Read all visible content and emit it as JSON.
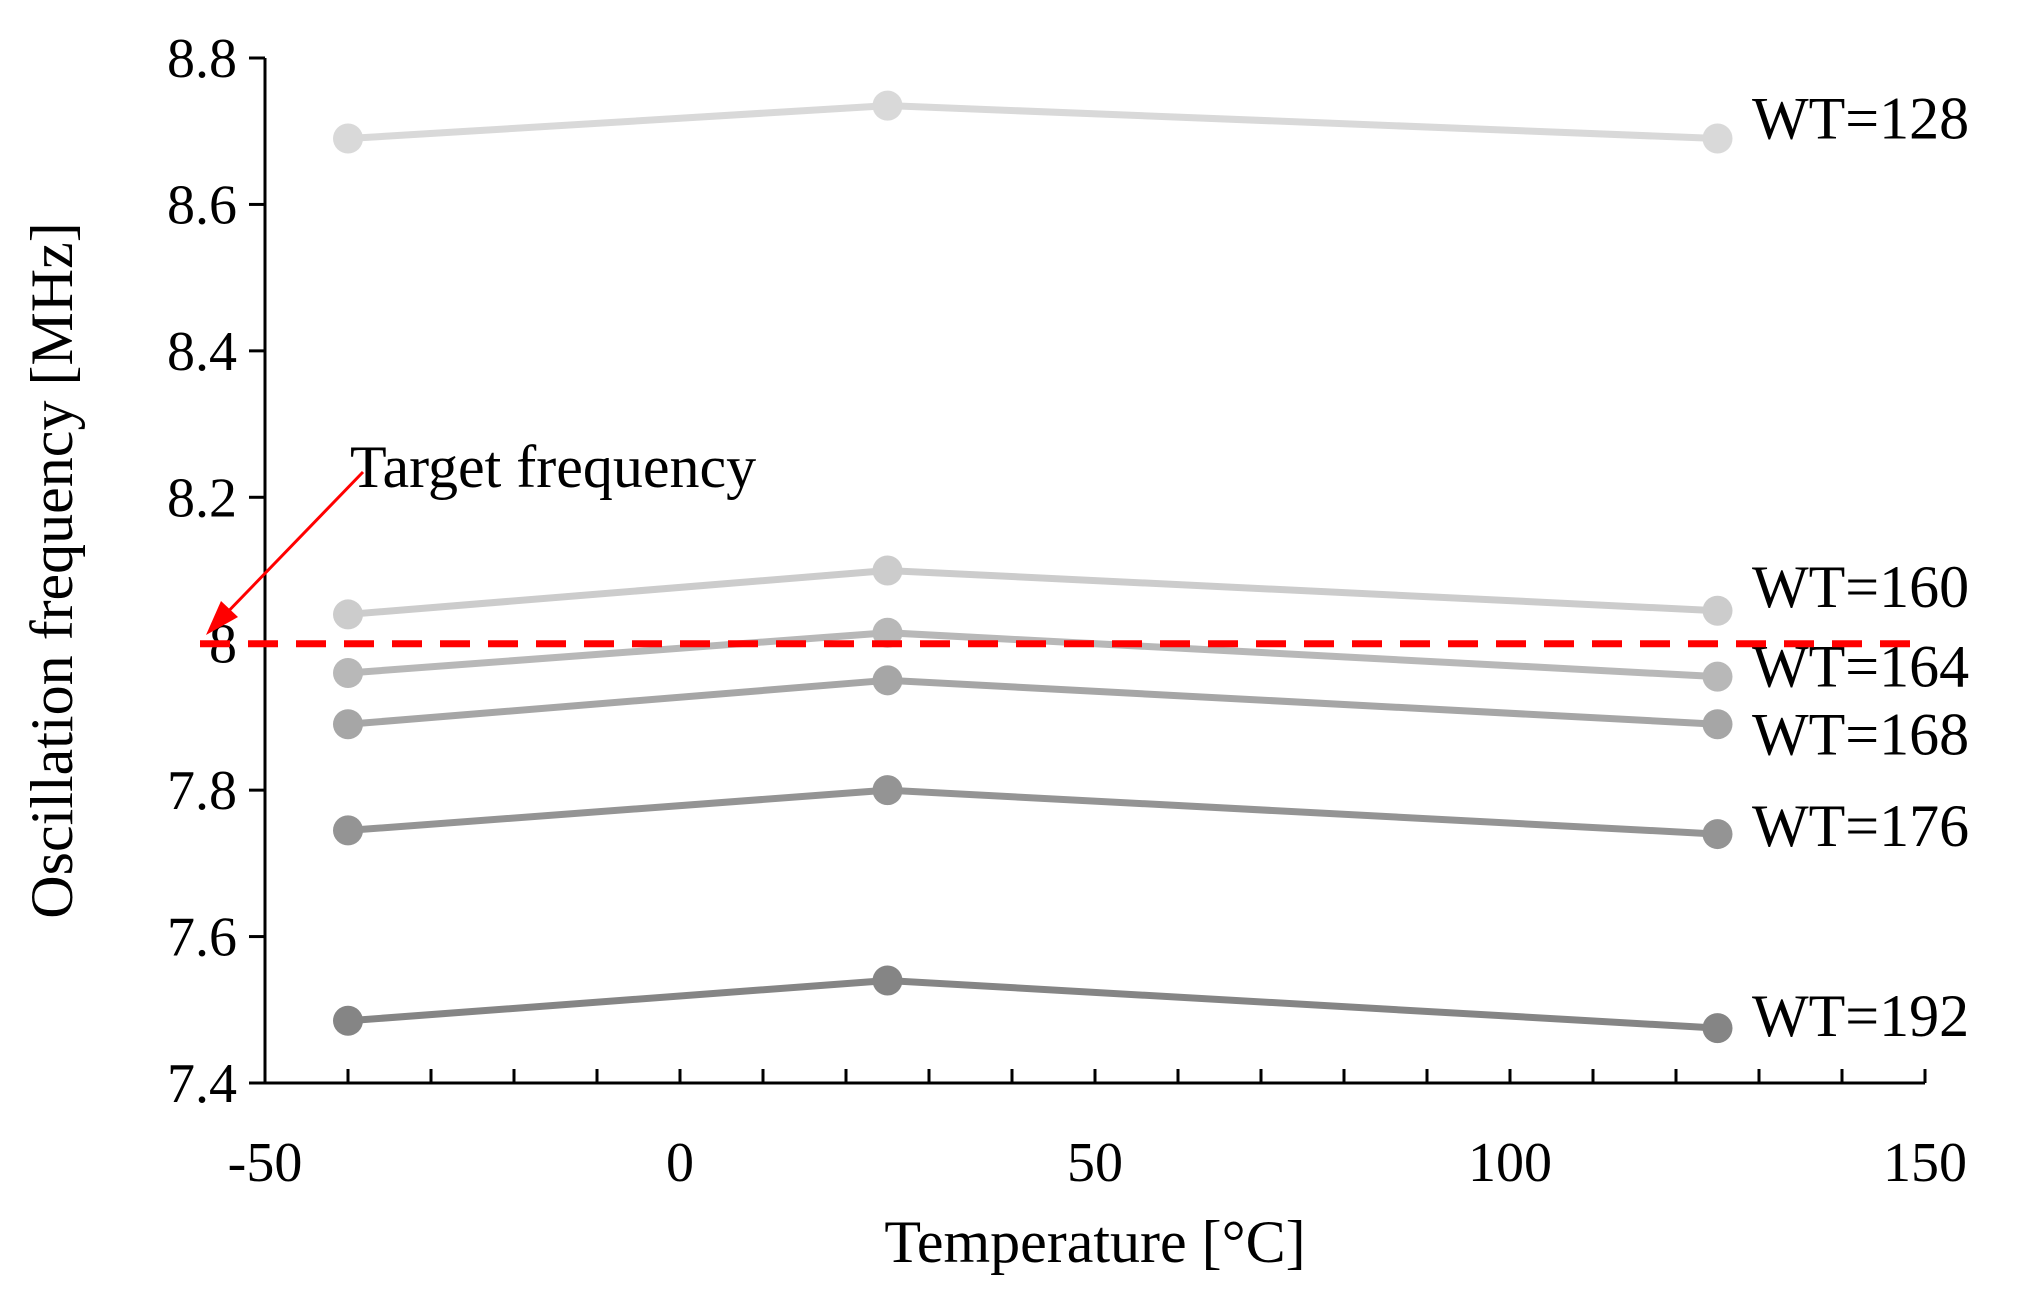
{
  "chart_data": {
    "type": "line",
    "title": "",
    "xlabel": "Temperature [°C]",
    "ylabel": "Oscillation frequency [MHz]",
    "xlim": [
      -50,
      150
    ],
    "ylim": [
      7.4,
      8.8
    ],
    "x_major_ticks": [
      -50,
      0,
      50,
      100,
      150
    ],
    "x_tick_labels": [
      "-50",
      "0",
      "50",
      "100",
      "150"
    ],
    "x_minor_tick_step": 10,
    "y_ticks": [
      7.4,
      7.6,
      7.8,
      8.0,
      8.2,
      8.4,
      8.6,
      8.8
    ],
    "y_tick_labels": [
      "7.4",
      "7.6",
      "7.8",
      "8",
      "8.2",
      "8.4",
      "8.6",
      "8.8"
    ],
    "grid": false,
    "x": [
      -40,
      25,
      125
    ],
    "series": [
      {
        "name": "WT=128",
        "values": [
          8.69,
          8.735,
          8.69
        ],
        "color": "#d9d9d9"
      },
      {
        "name": "WT=160",
        "values": [
          8.04,
          8.1,
          8.045
        ],
        "color": "#cccccc"
      },
      {
        "name": "WT=164",
        "values": [
          7.96,
          8.015,
          7.955
        ],
        "color": "#b8b8b8"
      },
      {
        "name": "WT=168",
        "values": [
          7.89,
          7.95,
          7.89
        ],
        "color": "#a6a6a6"
      },
      {
        "name": "WT=176",
        "values": [
          7.745,
          7.8,
          7.74
        ],
        "color": "#949494"
      },
      {
        "name": "WT=192",
        "values": [
          7.485,
          7.54,
          7.475
        ],
        "color": "#858585"
      }
    ],
    "reference_line": {
      "label": "Target frequency",
      "value": 8.0,
      "color": "#ff0000",
      "style": "dashed"
    },
    "arrow_color": "#ff0000"
  }
}
